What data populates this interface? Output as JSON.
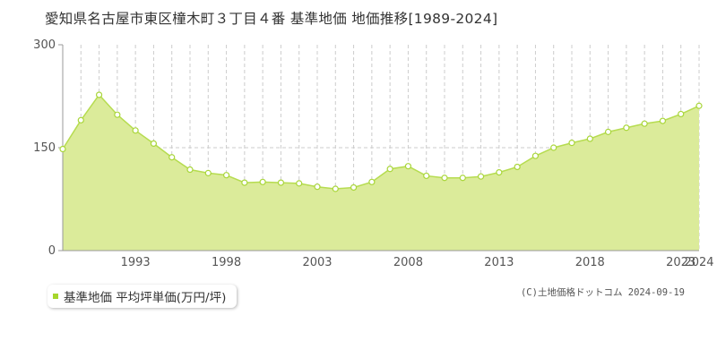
{
  "title": "愛知県名古屋市東区橦木町３丁目４番 基準地価 地価推移[1989-2024]",
  "legend_label": "基準地価 平均坪単価(万円/坪)",
  "credit": "(C)土地価格ドットコム 2024-09-19",
  "colors": {
    "fill": "#dbeb9a",
    "line": "#b6dc50",
    "point_stroke": "#a9d63a",
    "point_fill": "#ffffff",
    "grid_dashed": "#cccccc",
    "axis": "#999999",
    "legend_marker": "#a6d62c"
  },
  "chart_data": {
    "type": "area",
    "x": [
      1989,
      1990,
      1991,
      1992,
      1993,
      1994,
      1995,
      1996,
      1997,
      1998,
      1999,
      2000,
      2001,
      2002,
      2003,
      2004,
      2005,
      2006,
      2007,
      2008,
      2009,
      2010,
      2011,
      2012,
      2013,
      2014,
      2015,
      2016,
      2017,
      2018,
      2019,
      2020,
      2021,
      2022,
      2023,
      2024
    ],
    "series": [
      {
        "values": [
          148,
          190,
          227,
          198,
          175,
          156,
          136,
          118,
          113,
          110,
          99,
          100,
          99,
          98,
          93,
          90,
          92,
          100,
          119,
          123,
          109,
          106,
          106,
          108,
          114,
          122,
          138,
          150,
          157,
          163,
          173,
          179,
          185,
          189,
          199,
          211
        ]
      }
    ],
    "xticks": [
      "1993",
      "1998",
      "2003",
      "2008",
      "2013",
      "2018",
      "2023",
      "2024"
    ],
    "yticks": [
      "0",
      "150",
      "300"
    ],
    "ylim": [
      0,
      300
    ],
    "xlim": [
      1989,
      2024
    ],
    "grid": "vertical dashed per year, horizontal dashed at 150",
    "legend_position": "bottom-left"
  }
}
